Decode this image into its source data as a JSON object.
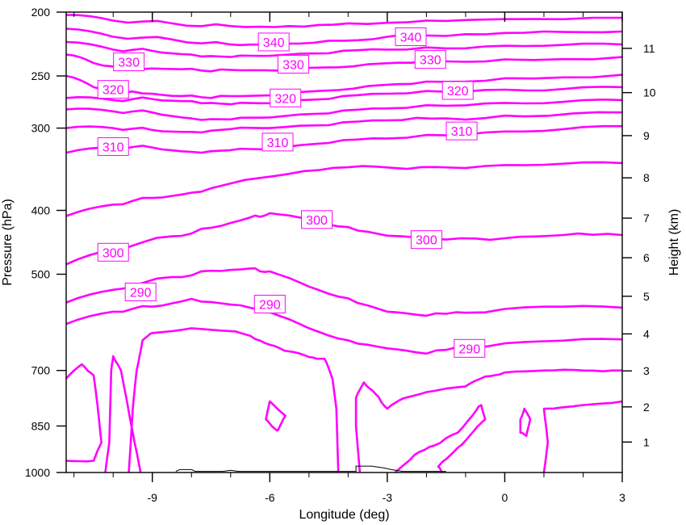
{
  "chart_data": {
    "type": "line",
    "subtype": "contour-cross-section",
    "xlabel": "Longitude (deg)",
    "ylabel": "Pressure (hPa)",
    "y2label": "Height (km)",
    "xlim": [
      -11.2,
      3.0
    ],
    "ylim_hpa": [
      1000,
      200
    ],
    "y_scale": "log",
    "x_ticks": [
      {
        "value": -9,
        "label": "-9"
      },
      {
        "value": -6,
        "label": "-6"
      },
      {
        "value": -3,
        "label": "-3"
      },
      {
        "value": 0,
        "label": "0"
      },
      {
        "value": 3,
        "label": "3"
      }
    ],
    "y_ticks": [
      {
        "value": 200,
        "label": "200"
      },
      {
        "value": 250,
        "label": "250"
      },
      {
        "value": 300,
        "label": "300"
      },
      {
        "value": 400,
        "label": "400"
      },
      {
        "value": 500,
        "label": "500"
      },
      {
        "value": 700,
        "label": "700"
      },
      {
        "value": 850,
        "label": "850"
      },
      {
        "value": 1000,
        "label": "1000"
      }
    ],
    "height_ticks": [
      {
        "value": 1000,
        "label": "1"
      },
      {
        "value": 1000,
        "label": "2"
      },
      {
        "value": 1000,
        "label": "3"
      },
      {
        "value": 1000,
        "label": "4"
      },
      {
        "value": 1000,
        "label": "5"
      },
      {
        "value": 1000,
        "label": "6"
      },
      {
        "value": 1000,
        "label": "7"
      },
      {
        "value": 1000,
        "label": "8"
      },
      {
        "value": 1000,
        "label": "9"
      },
      {
        "value": 1000,
        "label": "10"
      },
      {
        "value": 1000,
        "label": "11"
      }
    ],
    "height_tick_pressures": [
      899,
      795,
      701,
      616,
      540,
      472,
      411,
      357,
      308,
      265,
      227
    ],
    "contour_color": "#ff00ff",
    "contours": [
      {
        "level": 340,
        "points": [
          [
            -11.2,
            202
          ],
          [
            -10.0,
            206
          ],
          [
            -8.5,
            208
          ],
          [
            -7.0,
            210
          ],
          [
            -5.5,
            210
          ],
          [
            -4.0,
            208
          ],
          [
            -2.0,
            206
          ],
          [
            0.0,
            205
          ],
          [
            3.0,
            204
          ]
        ]
      },
      {
        "level": 340,
        "points": [
          [
            -11.2,
            212
          ],
          [
            -10.0,
            218
          ],
          [
            -8.5,
            220
          ],
          [
            -7.0,
            224
          ],
          [
            -6.0,
            223
          ],
          [
            -4.5,
            221
          ],
          [
            -3.0,
            218
          ],
          [
            -1.0,
            216
          ],
          [
            1.0,
            214
          ],
          [
            3.0,
            214
          ]
        ]
      },
      {
        "level": 330,
        "points": [
          [
            -11.2,
            222
          ],
          [
            -10.0,
            228
          ],
          [
            -9.0,
            229
          ],
          [
            -8.0,
            232
          ],
          [
            -7.0,
            234
          ],
          [
            -6.0,
            233
          ],
          [
            -4.5,
            231
          ],
          [
            -3.0,
            228
          ],
          [
            -1.0,
            227
          ],
          [
            1.0,
            225
          ],
          [
            3.0,
            224
          ]
        ]
      },
      {
        "level": 330,
        "points": [
          [
            -11.2,
            232
          ],
          [
            -10.5,
            239
          ],
          [
            -9.5,
            243
          ],
          [
            -8.5,
            244
          ],
          [
            -7.5,
            246
          ],
          [
            -6.5,
            245
          ],
          [
            -5.0,
            243
          ],
          [
            -3.5,
            240
          ],
          [
            -2.0,
            237
          ],
          [
            0.0,
            236
          ],
          [
            3.0,
            234
          ]
        ]
      },
      {
        "level": 320,
        "points": [
          [
            -11.2,
            250
          ],
          [
            -10.5,
            260
          ],
          [
            -9.5,
            264
          ],
          [
            -8.5,
            268
          ],
          [
            -7.5,
            270
          ],
          [
            -6.5,
            268
          ],
          [
            -5.0,
            264
          ],
          [
            -3.5,
            259
          ],
          [
            -2.0,
            255
          ],
          [
            0.0,
            252
          ],
          [
            3.0,
            249
          ]
        ]
      },
      {
        "level": 320,
        "points": [
          [
            -11.2,
            270
          ],
          [
            -10.0,
            272
          ],
          [
            -9.0,
            271
          ],
          [
            -8.0,
            273
          ],
          [
            -7.0,
            276
          ],
          [
            -6.0,
            275
          ],
          [
            -4.5,
            271
          ],
          [
            -3.0,
            266
          ],
          [
            -1.0,
            264
          ],
          [
            1.0,
            263
          ],
          [
            3.0,
            260
          ]
        ]
      },
      {
        "level": 310,
        "points": [
          [
            -11.2,
            281
          ],
          [
            -10.0,
            283
          ],
          [
            -9.0,
            284
          ],
          [
            -8.0,
            290
          ],
          [
            -7.0,
            291
          ],
          [
            -6.0,
            289
          ],
          [
            -4.5,
            285
          ],
          [
            -3.0,
            280
          ],
          [
            -1.0,
            277
          ],
          [
            1.0,
            275
          ],
          [
            3.0,
            272
          ]
        ]
      },
      {
        "level": 310,
        "points": [
          [
            -11.2,
            300
          ],
          [
            -10.0,
            300
          ],
          [
            -9.0,
            302
          ],
          [
            -8.0,
            304
          ],
          [
            -7.0,
            301
          ],
          [
            -6.0,
            300
          ],
          [
            -4.5,
            297
          ],
          [
            -3.0,
            292
          ],
          [
            -1.5,
            290
          ],
          [
            0.5,
            288
          ],
          [
            3.0,
            284
          ]
        ]
      },
      {
        "level": 310,
        "points": [
          [
            -11.2,
            327
          ],
          [
            -10.0,
            321
          ],
          [
            -9.0,
            321
          ],
          [
            -8.0,
            326
          ],
          [
            -7.0,
            324
          ],
          [
            -6.0,
            323
          ],
          [
            -4.5,
            316
          ],
          [
            -3.0,
            311
          ],
          [
            -1.0,
            307
          ],
          [
            1.0,
            303
          ],
          [
            3.0,
            298
          ]
        ]
      },
      {
        "level": 310,
        "points": [
          [
            -11.2,
            408
          ],
          [
            -10.0,
            392
          ],
          [
            -9.0,
            383
          ],
          [
            -8.0,
            376
          ],
          [
            -7.0,
            364
          ],
          [
            -5.5,
            352
          ],
          [
            -4.0,
            344
          ],
          [
            -2.5,
            346
          ],
          [
            -1.0,
            345
          ],
          [
            1.0,
            341
          ],
          [
            3.0,
            339
          ]
        ]
      },
      {
        "level": 300,
        "points": [
          [
            -11.2,
            483
          ],
          [
            -10.0,
            458
          ],
          [
            -8.5,
            438
          ],
          [
            -7.5,
            425
          ],
          [
            -6.5,
            410
          ],
          [
            -6.0,
            404
          ],
          [
            -5.0,
            413
          ],
          [
            -4.0,
            424
          ],
          [
            -3.0,
            437
          ],
          [
            -1.5,
            443
          ],
          [
            0.0,
            441
          ],
          [
            1.5,
            436
          ],
          [
            3.0,
            436
          ]
        ]
      },
      {
        "level": 290,
        "points": [
          [
            -11.2,
            552
          ],
          [
            -10.0,
            528
          ],
          [
            -8.5,
            505
          ],
          [
            -7.5,
            494
          ],
          [
            -6.5,
            490
          ],
          [
            -6.0,
            495
          ],
          [
            -5.0,
            522
          ],
          [
            -4.0,
            544
          ],
          [
            -3.0,
            570
          ],
          [
            -2.0,
            578
          ],
          [
            -1.0,
            572
          ],
          [
            1.0,
            560
          ],
          [
            3.0,
            562
          ]
        ]
      },
      {
        "level": 290,
        "points": [
          [
            -11.2,
            595
          ],
          [
            -10.0,
            570
          ],
          [
            -9.0,
            560
          ],
          [
            -8.0,
            545
          ],
          [
            -7.0,
            556
          ],
          [
            -6.0,
            571
          ],
          [
            -5.0,
            604
          ],
          [
            -4.0,
            630
          ],
          [
            -3.0,
            648
          ],
          [
            -2.0,
            660
          ],
          [
            -1.0,
            645
          ],
          [
            1.0,
            632
          ],
          [
            3.0,
            628
          ]
        ]
      }
    ],
    "contour_labels": [
      {
        "text": "340",
        "x": -5.9,
        "p": 222
      },
      {
        "text": "340",
        "x": -2.4,
        "p": 218
      },
      {
        "text": "330",
        "x": -9.6,
        "p": 238
      },
      {
        "text": "330",
        "x": -5.4,
        "p": 240
      },
      {
        "text": "330",
        "x": -1.9,
        "p": 236
      },
      {
        "text": "320",
        "x": -10.0,
        "p": 262
      },
      {
        "text": "320",
        "x": -5.6,
        "p": 270
      },
      {
        "text": "320",
        "x": -1.2,
        "p": 263
      },
      {
        "text": "310",
        "x": -10.0,
        "p": 320
      },
      {
        "text": "310",
        "x": -5.8,
        "p": 315
      },
      {
        "text": "310",
        "x": -1.1,
        "p": 303
      },
      {
        "text": "300",
        "x": -4.8,
        "p": 413
      },
      {
        "text": "300",
        "x": -10.0,
        "p": 463
      },
      {
        "text": "300",
        "x": -2.0,
        "p": 443
      },
      {
        "text": "290",
        "x": -9.3,
        "p": 532
      },
      {
        "text": "290",
        "x": -6.0,
        "p": 555
      },
      {
        "text": "290",
        "x": -0.9,
        "p": 648
      }
    ],
    "lower_contours": [
      [
        [
          -11.2,
          720
        ],
        [
          -10.8,
          685
        ],
        [
          -10.5,
          712
        ],
        [
          -10.4,
          790
        ],
        [
          -10.3,
          900
        ],
        [
          -10.5,
          960
        ],
        [
          -11.2,
          960
        ]
      ],
      [
        [
          -10.2,
          1000
        ],
        [
          -10.1,
          900
        ],
        [
          -10.05,
          700
        ],
        [
          -10.0,
          666
        ],
        [
          -9.8,
          700
        ],
        [
          -9.5,
          870
        ],
        [
          -9.3,
          1000
        ]
      ],
      [
        [
          -9.6,
          1000
        ],
        [
          -9.5,
          800
        ],
        [
          -9.4,
          700
        ],
        [
          -9.25,
          630
        ],
        [
          -9.0,
          614
        ],
        [
          -8.0,
          604
        ],
        [
          -7.0,
          610
        ],
        [
          -6.5,
          620
        ],
        [
          -6.0,
          640
        ],
        [
          -5.5,
          655
        ],
        [
          -5.0,
          668
        ],
        [
          -4.6,
          672
        ],
        [
          -4.4,
          720
        ],
        [
          -4.3,
          800
        ],
        [
          -4.25,
          1000
        ]
      ],
      [
        [
          -3.7,
          1000
        ],
        [
          -3.8,
          850
        ],
        [
          -3.8,
          770
        ],
        [
          -3.6,
          730
        ],
        [
          -3.3,
          760
        ],
        [
          -3.0,
          800
        ],
        [
          -2.6,
          772
        ],
        [
          -2.0,
          755
        ],
        [
          -1.0,
          740
        ],
        [
          -0.5,
          715
        ],
        [
          0.0,
          705
        ],
        [
          1.0,
          700
        ],
        [
          2.0,
          700
        ],
        [
          3.0,
          700
        ]
      ],
      [
        [
          -5.8,
          865
        ],
        [
          -6.1,
          830
        ],
        [
          -6.0,
          780
        ],
        [
          -5.6,
          820
        ],
        [
          -5.8,
          865
        ]
      ],
      [
        [
          -2.8,
          1000
        ],
        [
          -2.3,
          940
        ],
        [
          -1.8,
          910
        ],
        [
          -1.2,
          870
        ],
        [
          -0.7,
          800
        ],
        [
          -0.6,
          790
        ],
        [
          -0.5,
          830
        ],
        [
          -0.9,
          880
        ],
        [
          -1.3,
          930
        ],
        [
          -1.7,
          980
        ],
        [
          -1.6,
          1000
        ]
      ],
      [
        [
          0.4,
          830
        ],
        [
          0.5,
          800
        ],
        [
          0.65,
          830
        ],
        [
          0.55,
          880
        ],
        [
          0.4,
          870
        ],
        [
          0.4,
          830
        ]
      ],
      [
        [
          1.0,
          1000
        ],
        [
          1.1,
          900
        ],
        [
          1.0,
          800
        ],
        [
          2.0,
          790
        ],
        [
          3.0,
          780
        ]
      ]
    ],
    "terrain": [
      [
        -8.4,
        996
      ],
      [
        -8.3,
        990
      ],
      [
        -8.0,
        990
      ],
      [
        -7.9,
        996
      ],
      [
        -7.2,
        996
      ],
      [
        -7.0,
        992
      ],
      [
        -6.8,
        996
      ],
      [
        -6.0,
        996
      ],
      [
        -3.8,
        996
      ],
      [
        -3.8,
        978
      ],
      [
        -3.4,
        978
      ],
      [
        -3.1,
        984
      ],
      [
        -2.9,
        990
      ],
      [
        -2.6,
        996
      ],
      [
        -1.5,
        996
      ]
    ]
  }
}
